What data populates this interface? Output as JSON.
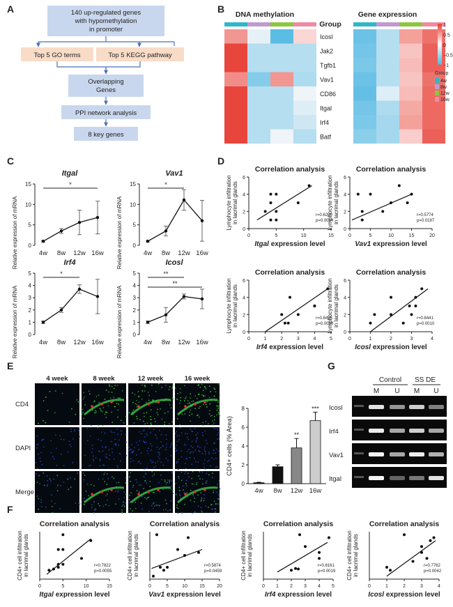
{
  "panel_letters": {
    "a": "A",
    "b": "B",
    "c": "C",
    "d": "D",
    "e": "E",
    "f": "F",
    "g": "G"
  },
  "flowchart": {
    "box1": [
      "140 up-regulated genes",
      "with hypomethylation",
      "in promoter"
    ],
    "go": "Top 5 GO terms",
    "kegg": "Top 5 KEGG pathway",
    "overlap": [
      "Overlapping",
      "Genes"
    ],
    "ppi": "PPI network analysis",
    "key": "8 key genes",
    "colors": {
      "blue_box": "#c9d7ee",
      "peach_box": "#f8dcc8",
      "arrow": "#4a72b8"
    }
  },
  "heatmap": {
    "title_left": "DNA methylation",
    "title_right": "Gene expression",
    "group_label": "Group",
    "genes": [
      "Icosl",
      "Jak2",
      "Tgfb1",
      "Vav1",
      "CD86",
      "Itgal",
      "Irf4",
      "Batf"
    ],
    "group_colors": {
      "4w": "#30b8c8",
      "8w": "#c09ad0",
      "12w": "#8cc63e",
      "16w": "#f08aa0"
    },
    "legend_ticks": [
      "1",
      "0.5",
      "0",
      "−0.5",
      "−1"
    ],
    "legend_title": "Group",
    "legend_groups": [
      "4w",
      "8w",
      "12w",
      "16w"
    ],
    "methylation": [
      [
        0.55,
        -0.15,
        -1.0,
        0.2
      ],
      [
        1.0,
        -0.45,
        -0.45,
        -0.45
      ],
      [
        1.0,
        -0.45,
        -0.45,
        -0.45
      ],
      [
        0.6,
        -0.75,
        0.55,
        -0.5
      ],
      [
        1.0,
        -0.45,
        -0.45,
        -0.1
      ],
      [
        1.0,
        -0.45,
        -0.45,
        -0.2
      ],
      [
        1.0,
        -0.45,
        -0.45,
        -0.3
      ],
      [
        1.0,
        -0.45,
        -0.1,
        -0.45
      ]
    ],
    "expression": [
      [
        -0.9,
        -0.45,
        0.5,
        0.75
      ],
      [
        -0.85,
        -0.45,
        0.3,
        0.85
      ],
      [
        -0.8,
        -0.45,
        0.35,
        0.85
      ],
      [
        -0.9,
        -0.45,
        0.3,
        0.75
      ],
      [
        -0.95,
        -0.2,
        0.35,
        0.8
      ],
      [
        -0.85,
        -0.5,
        0.45,
        0.8
      ],
      [
        -0.8,
        -0.55,
        0.5,
        0.8
      ],
      [
        -0.7,
        -0.55,
        0.25,
        0.85
      ]
    ]
  },
  "panel_c": {
    "ylabel": "Relative expression of mRNA",
    "x_categories": [
      "4w",
      "8w",
      "12w",
      "16w"
    ],
    "charts": [
      {
        "gene": "Itgal",
        "means": [
          1.0,
          3.5,
          5.6,
          6.8
        ],
        "err": [
          0.2,
          0.6,
          3.0,
          4.0
        ],
        "ylim": [
          0,
          15
        ],
        "yticks": [
          "0",
          "5",
          "10",
          "15"
        ],
        "sig": [
          {
            "label": "*",
            "from": 0,
            "to": 3
          }
        ]
      },
      {
        "gene": "Vav1",
        "means": [
          1.0,
          3.5,
          11.1,
          6.0
        ],
        "err": [
          0.2,
          1.2,
          2.5,
          5.0
        ],
        "ylim": [
          0,
          15
        ],
        "yticks": [
          "0",
          "5",
          "10",
          "15"
        ],
        "sig": [
          {
            "label": "*",
            "from": 0,
            "to": 2
          }
        ]
      },
      {
        "gene": "Irf4",
        "means": [
          1.0,
          2.0,
          3.7,
          3.1
        ],
        "err": [
          0.1,
          0.2,
          0.35,
          1.4
        ],
        "ylim": [
          0,
          5
        ],
        "yticks": [
          "0",
          "1",
          "2",
          "3",
          "4",
          "5"
        ],
        "sig": [
          {
            "label": "*",
            "from": 0,
            "to": 2
          }
        ]
      },
      {
        "gene": "Icosl",
        "means": [
          1.0,
          1.6,
          3.1,
          2.9
        ],
        "err": [
          0.1,
          0.6,
          0.2,
          0.8
        ],
        "ylim": [
          0,
          5
        ],
        "yticks": [
          "0",
          "1",
          "2",
          "3",
          "4",
          "5"
        ],
        "sig": [
          {
            "label": "**",
            "from": 0,
            "to": 2
          },
          {
            "label": "**",
            "from": 0,
            "to": 3
          }
        ]
      }
    ]
  },
  "panel_d": {
    "title": "Correlation analysis",
    "ylabel1": "Lymphocyte infiltration",
    "ylabel2": "in lacrimal glands",
    "xlabel_suffix": " expression level",
    "charts": [
      {
        "gene": "Itgal",
        "r": "r=0.6200",
        "p": "p=0.0014",
        "xlim": [
          0,
          15
        ],
        "xticks": [
          "0",
          "5",
          "10",
          "15"
        ],
        "ylim": [
          0,
          6
        ],
        "yticks": [
          "0",
          "2",
          "4",
          "6"
        ],
        "points": [
          [
            4,
            4
          ],
          [
            5,
            4
          ],
          [
            4,
            3
          ],
          [
            3,
            2
          ],
          [
            5,
            2
          ],
          [
            4,
            1
          ],
          [
            5,
            1
          ],
          [
            11,
            5
          ],
          [
            9,
            3
          ]
        ],
        "line": [
          [
            1.5,
            1.0
          ],
          [
            11.5,
            5.0
          ]
        ]
      },
      {
        "gene": "Vav1",
        "r": "r=0.5774",
        "p": "p=0.0187",
        "xlim": [
          0,
          20
        ],
        "xticks": [
          "0",
          "5",
          "10",
          "15",
          "20"
        ],
        "ylim": [
          0,
          6
        ],
        "yticks": [
          "0",
          "2",
          "4",
          "6"
        ],
        "points": [
          [
            2,
            4
          ],
          [
            5,
            4
          ],
          [
            3,
            2
          ],
          [
            3,
            1
          ],
          [
            8,
            2
          ],
          [
            12,
            5
          ],
          [
            14,
            3
          ],
          [
            15,
            4
          ],
          [
            10,
            3
          ]
        ],
        "line": [
          [
            0.5,
            1.0
          ],
          [
            15,
            4.0
          ]
        ]
      },
      {
        "gene": "Irf4",
        "r": "r=0.8455",
        "p": "p=0.0010",
        "xlim": [
          0,
          5
        ],
        "xticks": [
          "0",
          "1",
          "2",
          "3",
          "4",
          "5"
        ],
        "ylim": [
          0,
          6
        ],
        "yticks": [
          "0",
          "2",
          "4",
          "6"
        ],
        "points": [
          [
            2,
            2
          ],
          [
            2.2,
            1
          ],
          [
            2.4,
            1
          ],
          [
            2.5,
            4
          ],
          [
            3,
            2
          ],
          [
            4,
            3
          ],
          [
            4,
            3
          ],
          [
            4.8,
            5
          ]
        ],
        "line": [
          [
            1.0,
            0
          ],
          [
            4.8,
            5.0
          ]
        ]
      },
      {
        "gene": "Icosl",
        "r": "r=0.8441",
        "p": "p=0.0010",
        "xlim": [
          0,
          4
        ],
        "xticks": [
          "0",
          "1",
          "2",
          "3",
          "4"
        ],
        "ylim": [
          0,
          6
        ],
        "yticks": [
          "0",
          "2",
          "4",
          "6"
        ],
        "points": [
          [
            1,
            1
          ],
          [
            1.2,
            2
          ],
          [
            2,
            4
          ],
          [
            2,
            2
          ],
          [
            2.9,
            3
          ],
          [
            3,
            2
          ],
          [
            3.2,
            3
          ],
          [
            3.2,
            4
          ],
          [
            3.5,
            5
          ],
          [
            2.6,
            1
          ]
        ],
        "line": [
          [
            1.0,
            0
          ],
          [
            3.8,
            5.0
          ]
        ]
      }
    ]
  },
  "panel_e": {
    "col_labels": [
      "4 week",
      "8 week",
      "12 week",
      "16 week"
    ],
    "row_labels": [
      "CD4",
      "DAPI",
      "Merge"
    ],
    "bar_chart": {
      "ylabel": "CD4+ cells (% Area)",
      "categories": [
        "4w",
        "8w",
        "12w",
        "16w"
      ],
      "values": [
        0.1,
        1.8,
        3.8,
        6.7
      ],
      "err": [
        0.05,
        0.2,
        1.0,
        0.9
      ],
      "sig": [
        "",
        "",
        "**",
        "***"
      ],
      "ylim": [
        0,
        8
      ],
      "yticks": [
        "0",
        "2",
        "4",
        "6",
        "8"
      ],
      "colors": [
        "#111111",
        "#111111",
        "#888888",
        "#cccccc"
      ]
    }
  },
  "panel_f": {
    "title": "Correlation analysis",
    "ylabel1": "CD4+ cell infiltration",
    "ylabel2": "in lacrimal glands",
    "xlabel_suffix": " expression level",
    "charts": [
      {
        "gene": "Itgal",
        "r": "r=0.7822",
        "p": "p=0.0055",
        "xlim": [
          0,
          15
        ],
        "xticks": [
          "0",
          "5",
          "10",
          "15"
        ],
        "ylim": [
          0,
          8
        ],
        "points": [
          [
            2,
            1.5
          ],
          [
            3,
            1.7
          ],
          [
            4,
            2
          ],
          [
            4,
            2.5
          ],
          [
            5,
            2.5
          ],
          [
            4,
            5
          ],
          [
            5,
            7.5
          ],
          [
            5,
            5
          ],
          [
            9,
            3.5
          ],
          [
            11,
            6.5
          ]
        ],
        "line": [
          [
            1.5,
            0.8
          ],
          [
            11,
            6.8
          ]
        ]
      },
      {
        "gene": "Vav1",
        "r": "r=0.5874",
        "p": "p=0.0459",
        "xlim": [
          0,
          20
        ],
        "xticks": [
          "0",
          "5",
          "10",
          "15",
          "20"
        ],
        "ylim": [
          0,
          8
        ],
        "points": [
          [
            1,
            0.5
          ],
          [
            2,
            7.5
          ],
          [
            3,
            2
          ],
          [
            4,
            1.5
          ],
          [
            5,
            2
          ],
          [
            8,
            5
          ],
          [
            10,
            4
          ],
          [
            11,
            7
          ],
          [
            14,
            4.5
          ]
        ],
        "line": [
          [
            0.5,
            1.8
          ],
          [
            15,
            5
          ]
        ]
      },
      {
        "gene": "Irf4",
        "r": "r=0.8161",
        "p": "p=0.0019",
        "xlim": [
          0,
          5
        ],
        "xticks": [
          "0",
          "1",
          "2",
          "3",
          "4",
          "5"
        ],
        "ylim": [
          0,
          8
        ],
        "points": [
          [
            2,
            1.5
          ],
          [
            2.3,
            1.8
          ],
          [
            2.5,
            1.7
          ],
          [
            2.6,
            7.5
          ],
          [
            3,
            5.5
          ],
          [
            4,
            3.5
          ],
          [
            4,
            4.5
          ],
          [
            4.7,
            7
          ]
        ],
        "line": [
          [
            1.0,
            1.2
          ],
          [
            4.6,
            6.2
          ]
        ]
      },
      {
        "gene": "Icosl",
        "r": "r=0.7762",
        "p": "p=0.0042",
        "xlim": [
          0,
          4
        ],
        "xticks": [
          "0",
          "1",
          "2",
          "3",
          "4"
        ],
        "ylim": [
          0,
          8
        ],
        "points": [
          [
            1,
            2
          ],
          [
            1.2,
            1.5
          ],
          [
            2,
            7.5
          ],
          [
            2.5,
            3
          ],
          [
            3,
            4.5
          ],
          [
            3,
            5.5
          ],
          [
            3.3,
            3.5
          ],
          [
            3.5,
            6.5
          ],
          [
            3.7,
            7
          ]
        ],
        "line": [
          [
            1.0,
            0.5
          ],
          [
            3.8,
            6.5
          ]
        ]
      }
    ]
  },
  "panel_g": {
    "group1": "Control",
    "group2": "SS DE",
    "lanes": [
      "M",
      "U",
      "M",
      "U"
    ],
    "genes": [
      "Icosl",
      "Irf4",
      "Vav1",
      "Itgal"
    ],
    "intensity": [
      [
        0.85,
        0.45,
        0.75,
        0.35
      ],
      [
        0.9,
        0.55,
        0.75,
        0.55
      ],
      [
        0.95,
        0.55,
        0.9,
        0.6
      ],
      [
        0.95,
        0.2,
        0.3,
        0.85
      ]
    ]
  }
}
